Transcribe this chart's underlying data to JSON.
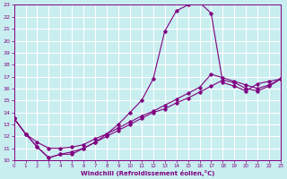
{
  "xlabel": "Windchill (Refroidissement éolien,°C)",
  "background_color": "#c8eef0",
  "grid_color": "#ffffff",
  "line_color": "#800080",
  "xlim": [
    0,
    23
  ],
  "ylim": [
    10,
    23
  ],
  "xticks": [
    0,
    1,
    2,
    3,
    4,
    5,
    6,
    7,
    8,
    9,
    10,
    11,
    12,
    13,
    14,
    15,
    16,
    17,
    18,
    19,
    20,
    21,
    22,
    23
  ],
  "yticks": [
    10,
    11,
    12,
    13,
    14,
    15,
    16,
    17,
    18,
    19,
    20,
    21,
    22,
    23
  ],
  "line1_x": [
    0,
    1,
    2,
    3,
    4,
    5,
    6,
    7,
    8,
    9,
    10,
    11,
    12,
    13,
    14,
    15,
    16,
    17,
    18,
    19,
    20,
    21,
    22,
    23
  ],
  "line1_y": [
    13.5,
    12.2,
    11.1,
    10.2,
    10.5,
    10.5,
    11.0,
    11.5,
    12.2,
    13.0,
    14.0,
    15.0,
    16.8,
    20.8,
    22.5,
    23.0,
    23.2,
    22.3,
    16.5,
    16.2,
    15.8,
    16.4,
    16.6,
    16.8
  ],
  "line2_x": [
    0,
    1,
    2,
    3,
    4,
    5,
    6,
    7,
    8,
    9,
    10,
    11,
    12,
    13,
    14,
    15,
    16,
    17,
    18,
    19,
    20,
    21,
    22,
    23
  ],
  "line2_y": [
    13.5,
    12.2,
    11.1,
    10.2,
    10.5,
    10.7,
    11.0,
    11.5,
    12.0,
    12.5,
    13.0,
    13.5,
    14.0,
    14.3,
    14.8,
    15.2,
    15.7,
    16.2,
    16.7,
    16.5,
    16.0,
    15.8,
    16.2,
    16.8
  ],
  "line3_x": [
    0,
    1,
    2,
    3,
    4,
    5,
    6,
    7,
    8,
    9,
    10,
    11,
    12,
    13,
    14,
    15,
    16,
    17,
    18,
    19,
    20,
    21,
    22,
    23
  ],
  "line3_y": [
    13.5,
    12.2,
    11.5,
    11.0,
    11.0,
    11.1,
    11.3,
    11.8,
    12.2,
    12.7,
    13.2,
    13.7,
    14.1,
    14.6,
    15.1,
    15.6,
    16.1,
    17.2,
    16.9,
    16.6,
    16.3,
    16.0,
    16.3,
    16.8
  ]
}
